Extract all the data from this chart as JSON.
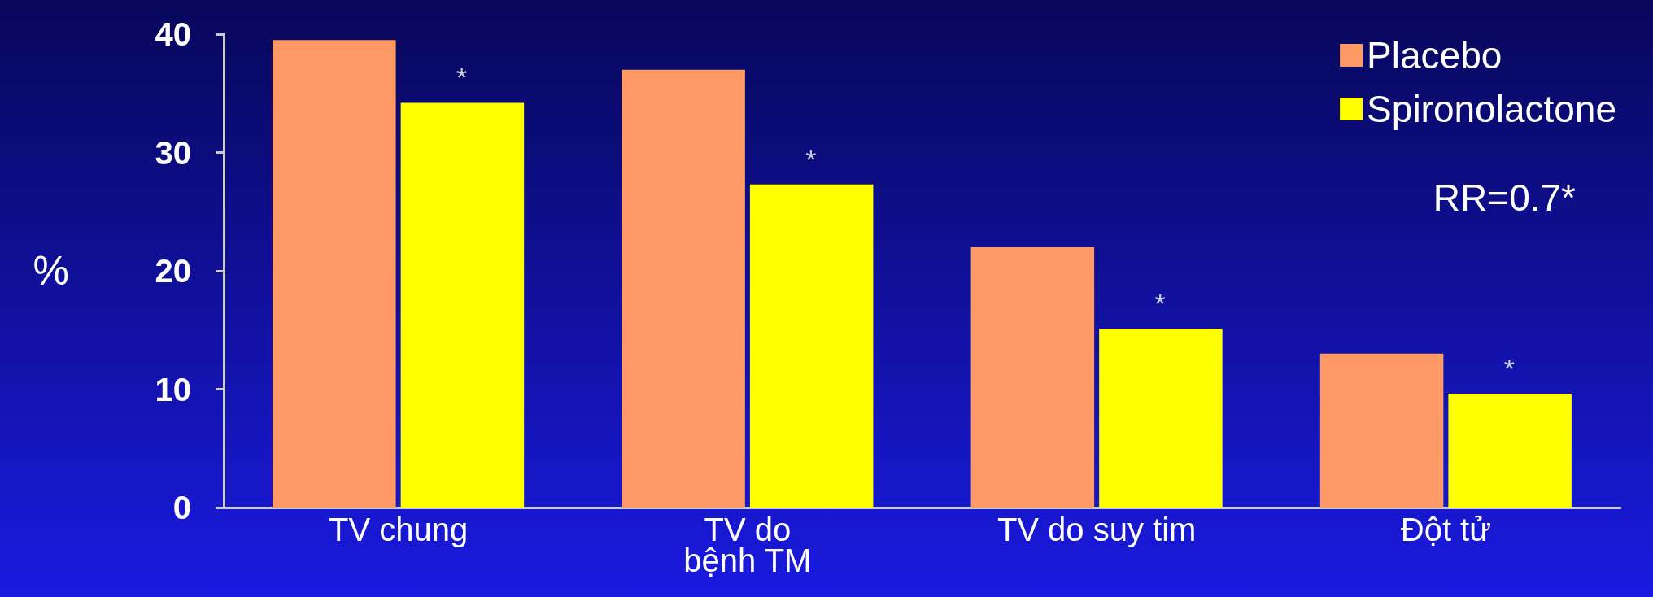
{
  "chart_data": {
    "type": "bar",
    "ylabel": "%",
    "categories": [
      "TV chung",
      "TV do\nbệnh TM",
      "TV do suy tim",
      "Đột tử"
    ],
    "series": [
      {
        "name": "Placebo",
        "color": "#ff9966",
        "values": [
          39.5,
          37.0,
          22.0,
          13.0
        ]
      },
      {
        "name": "Spironolactone",
        "color": "#ffff00",
        "values": [
          34.2,
          27.3,
          15.1,
          9.6
        ]
      }
    ],
    "ylim": [
      0,
      40
    ],
    "yticks": [
      0,
      10,
      20,
      30,
      40
    ],
    "grid": false,
    "legend": "top right",
    "annotations": [
      {
        "text": "*",
        "x": "TV chung",
        "y": 34.2
      },
      {
        "text": "*",
        "x": "TV do\nbệnh TM",
        "y": 27.3
      },
      {
        "text": "*",
        "x": "TV do suy tim",
        "y": 15.1
      },
      {
        "text": "*",
        "x": "Đột tử",
        "y": 9.6
      },
      "RR=0.7*"
    ]
  }
}
